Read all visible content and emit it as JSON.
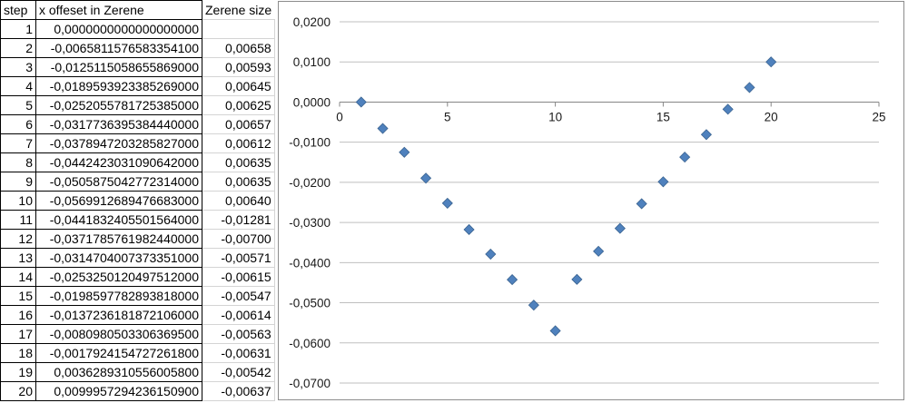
{
  "table": {
    "headers": [
      "step",
      "x offeset in Zerene",
      "Zerene size"
    ],
    "rows": [
      {
        "step": "1",
        "offset": "0,0000000000000000000",
        "size": ""
      },
      {
        "step": "2",
        "offset": "-0,0065811576583354100",
        "size": "0,00658"
      },
      {
        "step": "3",
        "offset": "-0,0125115058655869000",
        "size": "0,00593"
      },
      {
        "step": "4",
        "offset": "-0,0189593923385269000",
        "size": "0,00645"
      },
      {
        "step": "5",
        "offset": "-0,0252055781725385000",
        "size": "0,00625"
      },
      {
        "step": "6",
        "offset": "-0,0317736395384440000",
        "size": "0,00657"
      },
      {
        "step": "7",
        "offset": "-0,0378947203285827000",
        "size": "0,00612"
      },
      {
        "step": "8",
        "offset": "-0,0442423031090642000",
        "size": "0,00635"
      },
      {
        "step": "9",
        "offset": "-0,0505875042772314000",
        "size": "0,00635"
      },
      {
        "step": "10",
        "offset": "-0,0569912689476683000",
        "size": "0,00640"
      },
      {
        "step": "11",
        "offset": "-0,0441832405501564000",
        "size": "-0,01281"
      },
      {
        "step": "12",
        "offset": "-0,0371785761982440000",
        "size": "-0,00700"
      },
      {
        "step": "13",
        "offset": "-0,0314704007373351000",
        "size": "-0,00571"
      },
      {
        "step": "14",
        "offset": "-0,0253250120497512000",
        "size": "-0,00615"
      },
      {
        "step": "15",
        "offset": "-0,0198597782893818000",
        "size": "-0,00547"
      },
      {
        "step": "16",
        "offset": "-0,0137236181872106000",
        "size": "-0,00614"
      },
      {
        "step": "17",
        "offset": "-0,0080980503306369500",
        "size": "-0,00563"
      },
      {
        "step": "18",
        "offset": "-0,0017924154727261800",
        "size": "-0,00631"
      },
      {
        "step": "19",
        "offset": "0,0036289310556005800",
        "size": "-0,00542"
      },
      {
        "step": "20",
        "offset": "0,0099957294236150900",
        "size": "-0,00637"
      }
    ]
  },
  "chart_data": {
    "type": "scatter",
    "title": "",
    "xlabel": "",
    "ylabel": "",
    "xlim": [
      0,
      25
    ],
    "ylim": [
      -0.07,
      0.02
    ],
    "xticks": [
      0,
      5,
      10,
      15,
      20,
      25
    ],
    "xtick_labels": [
      "0",
      "5",
      "10",
      "15",
      "20",
      "25"
    ],
    "yticks": [
      0.02,
      0.01,
      0.0,
      -0.01,
      -0.02,
      -0.03,
      -0.04,
      -0.05,
      -0.06,
      -0.07
    ],
    "ytick_labels": [
      "0,0200",
      "0,0100",
      "0,0000",
      "-0,0100",
      "-0,0200",
      "-0,0300",
      "-0,0400",
      "-0,0500",
      "-0,0600",
      "-0,0700"
    ],
    "grid": "horizontal",
    "marker": "diamond",
    "marker_color": "#4f81bd",
    "legend": "none",
    "series": [
      {
        "x": [
          1,
          2,
          3,
          4,
          5,
          6,
          7,
          8,
          9,
          10,
          11,
          12,
          13,
          14,
          15,
          16,
          17,
          18,
          19,
          20
        ],
        "y": [
          0.0,
          -0.00658,
          -0.01251,
          -0.01896,
          -0.02521,
          -0.03177,
          -0.03789,
          -0.04424,
          -0.05059,
          -0.05699,
          -0.04418,
          -0.03718,
          -0.03147,
          -0.02533,
          -0.01986,
          -0.01372,
          -0.0081,
          -0.00179,
          0.00363,
          0.01
        ]
      }
    ]
  }
}
